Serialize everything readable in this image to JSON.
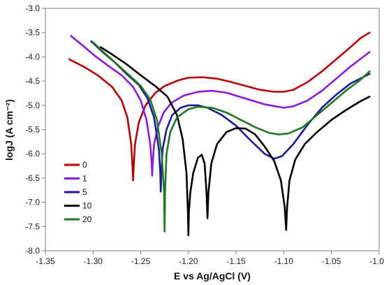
{
  "chart_data": {
    "type": "line",
    "title": "",
    "xlabel": "E vs Ag/AgCl  (V)",
    "ylabel": "logJ (A cm⁻²)",
    "xlim": [
      -1.35,
      -1.0
    ],
    "ylim": [
      -8.0,
      -3.0
    ],
    "xticks": [
      -1.35,
      -1.3,
      -1.25,
      -1.2,
      -1.15,
      -1.1,
      -1.05,
      -1.0
    ],
    "xtick_labels": [
      "-1.35",
      "-1.30",
      "-1.25",
      "-1.20",
      "-1.15",
      "-1.10",
      "-1.05",
      "-1.00"
    ],
    "yticks": [
      -3.0,
      -3.5,
      -4.0,
      -4.5,
      -5.0,
      -5.5,
      -6.0,
      -6.5,
      -7.0,
      -7.5,
      -8.0
    ],
    "ytick_labels": [
      "-3.0",
      "-3.5",
      "-4.0",
      "-4.5",
      "-5.0",
      "-5.5",
      "-6.0",
      "-6.5",
      "-7.0",
      "-7.5",
      "-8.0"
    ],
    "grid": false,
    "legend_position": "bottom-left",
    "series": [
      {
        "name": "0",
        "color": "#c00000",
        "points": [
          [
            -1.325,
            -4.05
          ],
          [
            -1.31,
            -4.2
          ],
          [
            -1.295,
            -4.38
          ],
          [
            -1.28,
            -4.62
          ],
          [
            -1.27,
            -4.9
          ],
          [
            -1.264,
            -5.25
          ],
          [
            -1.26,
            -5.8
          ],
          [
            -1.2585,
            -6.3
          ],
          [
            -1.258,
            -6.55
          ],
          [
            -1.2575,
            -6.3
          ],
          [
            -1.256,
            -5.8
          ],
          [
            -1.252,
            -5.35
          ],
          [
            -1.245,
            -5.0
          ],
          [
            -1.235,
            -4.75
          ],
          [
            -1.225,
            -4.6
          ],
          [
            -1.21,
            -4.48
          ],
          [
            -1.2,
            -4.43
          ],
          [
            -1.185,
            -4.42
          ],
          [
            -1.17,
            -4.45
          ],
          [
            -1.155,
            -4.52
          ],
          [
            -1.14,
            -4.6
          ],
          [
            -1.125,
            -4.68
          ],
          [
            -1.11,
            -4.72
          ],
          [
            -1.1,
            -4.72
          ],
          [
            -1.09,
            -4.68
          ],
          [
            -1.075,
            -4.52
          ],
          [
            -1.06,
            -4.3
          ],
          [
            -1.045,
            -4.05
          ],
          [
            -1.03,
            -3.8
          ],
          [
            -1.02,
            -3.62
          ],
          [
            -1.01,
            -3.5
          ]
        ]
      },
      {
        "name": "1",
        "color": "#8b1ae6",
        "points": [
          [
            -1.323,
            -3.57
          ],
          [
            -1.31,
            -3.78
          ],
          [
            -1.3,
            -3.95
          ],
          [
            -1.285,
            -4.17
          ],
          [
            -1.27,
            -4.38
          ],
          [
            -1.258,
            -4.62
          ],
          [
            -1.25,
            -4.9
          ],
          [
            -1.244,
            -5.3
          ],
          [
            -1.24,
            -5.8
          ],
          [
            -1.2385,
            -6.2
          ],
          [
            -1.238,
            -6.45
          ],
          [
            -1.2375,
            -6.2
          ],
          [
            -1.236,
            -5.8
          ],
          [
            -1.232,
            -5.45
          ],
          [
            -1.226,
            -5.15
          ],
          [
            -1.218,
            -4.95
          ],
          [
            -1.205,
            -4.8
          ],
          [
            -1.19,
            -4.72
          ],
          [
            -1.175,
            -4.7
          ],
          [
            -1.16,
            -4.74
          ],
          [
            -1.14,
            -4.86
          ],
          [
            -1.12,
            -4.98
          ],
          [
            -1.1,
            -5.05
          ],
          [
            -1.09,
            -5.02
          ],
          [
            -1.075,
            -4.9
          ],
          [
            -1.06,
            -4.7
          ],
          [
            -1.045,
            -4.45
          ],
          [
            -1.03,
            -4.2
          ],
          [
            -1.02,
            -4.05
          ],
          [
            -1.01,
            -3.9
          ]
        ]
      },
      {
        "name": "5",
        "color": "#1a1aa6",
        "points": [
          [
            -1.302,
            -3.68
          ],
          [
            -1.29,
            -3.9
          ],
          [
            -1.278,
            -4.1
          ],
          [
            -1.265,
            -4.35
          ],
          [
            -1.252,
            -4.58
          ],
          [
            -1.243,
            -4.85
          ],
          [
            -1.236,
            -5.25
          ],
          [
            -1.231,
            -5.9
          ],
          [
            -1.2295,
            -6.4
          ],
          [
            -1.229,
            -6.78
          ],
          [
            -1.2285,
            -6.4
          ],
          [
            -1.227,
            -5.9
          ],
          [
            -1.223,
            -5.5
          ],
          [
            -1.217,
            -5.2
          ],
          [
            -1.208,
            -5.05
          ],
          [
            -1.2,
            -5.0
          ],
          [
            -1.19,
            -5.0
          ],
          [
            -1.18,
            -5.05
          ],
          [
            -1.165,
            -5.2
          ],
          [
            -1.15,
            -5.42
          ],
          [
            -1.135,
            -5.72
          ],
          [
            -1.12,
            -6.0
          ],
          [
            -1.11,
            -6.1
          ],
          [
            -1.102,
            -6.05
          ],
          [
            -1.09,
            -5.8
          ],
          [
            -1.075,
            -5.4
          ],
          [
            -1.06,
            -5.05
          ],
          [
            -1.045,
            -4.78
          ],
          [
            -1.03,
            -4.55
          ],
          [
            -1.02,
            -4.45
          ],
          [
            -1.01,
            -4.35
          ]
        ]
      },
      {
        "name": "10",
        "color": "#000000",
        "points": [
          [
            -1.292,
            -3.8
          ],
          [
            -1.28,
            -3.95
          ],
          [
            -1.265,
            -4.15
          ],
          [
            -1.25,
            -4.38
          ],
          [
            -1.235,
            -4.6
          ],
          [
            -1.222,
            -4.82
          ],
          [
            -1.212,
            -5.2
          ],
          [
            -1.206,
            -5.7
          ],
          [
            -1.202,
            -6.4
          ],
          [
            -1.2005,
            -7.2
          ],
          [
            -1.2,
            -7.68
          ],
          [
            -1.1995,
            -7.2
          ],
          [
            -1.198,
            -6.8
          ],
          [
            -1.195,
            -6.4
          ],
          [
            -1.19,
            -6.08
          ],
          [
            -1.186,
            -6.02
          ],
          [
            -1.183,
            -6.2
          ],
          [
            -1.181,
            -6.8
          ],
          [
            -1.18,
            -7.33
          ],
          [
            -1.179,
            -6.8
          ],
          [
            -1.176,
            -6.2
          ],
          [
            -1.17,
            -5.8
          ],
          [
            -1.16,
            -5.55
          ],
          [
            -1.15,
            -5.47
          ],
          [
            -1.14,
            -5.48
          ],
          [
            -1.13,
            -5.6
          ],
          [
            -1.12,
            -5.85
          ],
          [
            -1.11,
            -6.15
          ],
          [
            -1.103,
            -6.55
          ],
          [
            -1.099,
            -7.1
          ],
          [
            -1.0975,
            -7.57
          ],
          [
            -1.0965,
            -7.1
          ],
          [
            -1.094,
            -6.55
          ],
          [
            -1.088,
            -6.12
          ],
          [
            -1.078,
            -5.8
          ],
          [
            -1.065,
            -5.55
          ],
          [
            -1.05,
            -5.3
          ],
          [
            -1.035,
            -5.1
          ],
          [
            -1.02,
            -4.92
          ],
          [
            -1.01,
            -4.82
          ]
        ]
      },
      {
        "name": "20",
        "color": "#1f7a1f",
        "points": [
          [
            -1.3,
            -3.7
          ],
          [
            -1.288,
            -3.92
          ],
          [
            -1.275,
            -4.15
          ],
          [
            -1.262,
            -4.38
          ],
          [
            -1.25,
            -4.6
          ],
          [
            -1.24,
            -4.88
          ],
          [
            -1.233,
            -5.3
          ],
          [
            -1.228,
            -6.0
          ],
          [
            -1.2255,
            -6.8
          ],
          [
            -1.225,
            -7.6
          ],
          [
            -1.2245,
            -6.8
          ],
          [
            -1.223,
            -6.0
          ],
          [
            -1.219,
            -5.55
          ],
          [
            -1.212,
            -5.25
          ],
          [
            -1.2,
            -5.08
          ],
          [
            -1.19,
            -5.03
          ],
          [
            -1.175,
            -5.05
          ],
          [
            -1.16,
            -5.15
          ],
          [
            -1.145,
            -5.3
          ],
          [
            -1.13,
            -5.45
          ],
          [
            -1.115,
            -5.57
          ],
          [
            -1.105,
            -5.6
          ],
          [
            -1.095,
            -5.58
          ],
          [
            -1.08,
            -5.45
          ],
          [
            -1.065,
            -5.2
          ],
          [
            -1.05,
            -4.95
          ],
          [
            -1.035,
            -4.7
          ],
          [
            -1.02,
            -4.48
          ],
          [
            -1.01,
            -4.3
          ]
        ]
      }
    ]
  }
}
